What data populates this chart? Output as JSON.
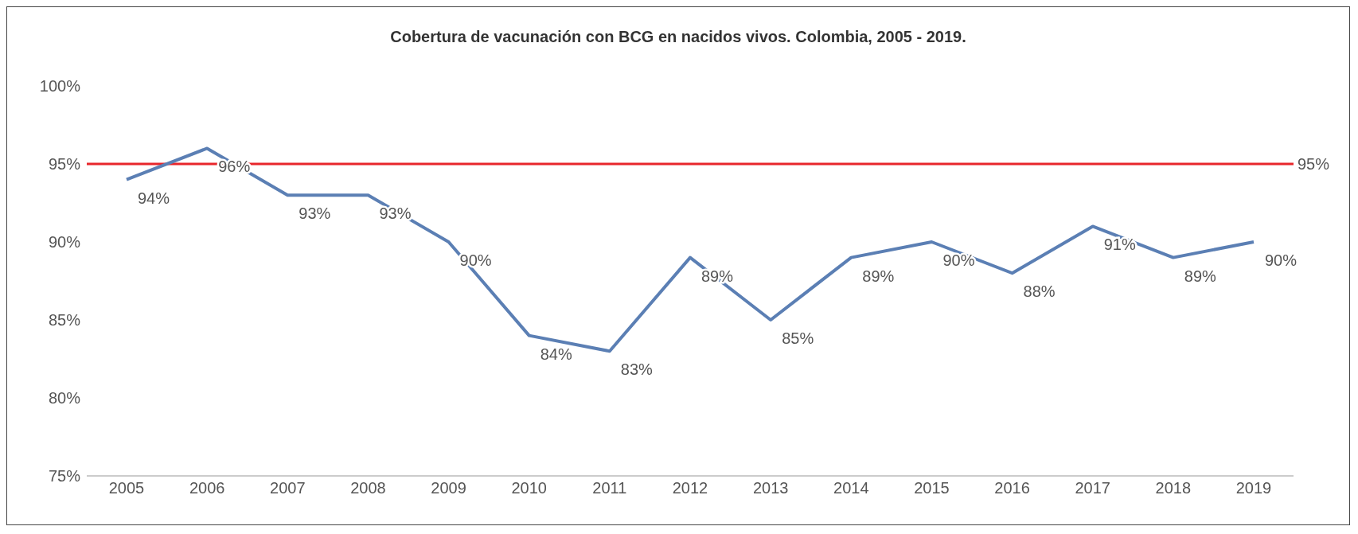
{
  "chart_data": {
    "type": "line",
    "title": "Cobertura de vacunación con BCG en nacidos vivos. Colombia, 2005 - 2019.",
    "categories": [
      "2005",
      "2006",
      "2007",
      "2008",
      "2009",
      "2010",
      "2011",
      "2012",
      "2013",
      "2014",
      "2015",
      "2016",
      "2017",
      "2018",
      "2019"
    ],
    "series": [
      {
        "color": "#5b7fb4",
        "values": [
          94,
          96,
          93,
          93,
          90,
          84,
          83,
          89,
          85,
          89,
          90,
          88,
          91,
          89,
          90
        ],
        "value_labels": [
          "94%",
          "96%",
          "93%",
          "93%",
          "90%",
          "84%",
          "83%",
          "89%",
          "85%",
          "89%",
          "90%",
          "88%",
          "91%",
          "89%",
          "90%"
        ]
      }
    ],
    "ylim": [
      75,
      100
    ],
    "yticks": [
      {
        "value": 75,
        "label": "75%"
      },
      {
        "value": 80,
        "label": "80%"
      },
      {
        "value": 85,
        "label": "85%"
      },
      {
        "value": 90,
        "label": "90%"
      },
      {
        "value": 95,
        "label": "95%"
      },
      {
        "value": 100,
        "label": "100%"
      }
    ],
    "ref_lines": [
      {
        "axis": "y",
        "value": 95,
        "label": "95%",
        "color": "#e8262b"
      }
    ],
    "grid": false,
    "legend": false,
    "marker": "none"
  }
}
